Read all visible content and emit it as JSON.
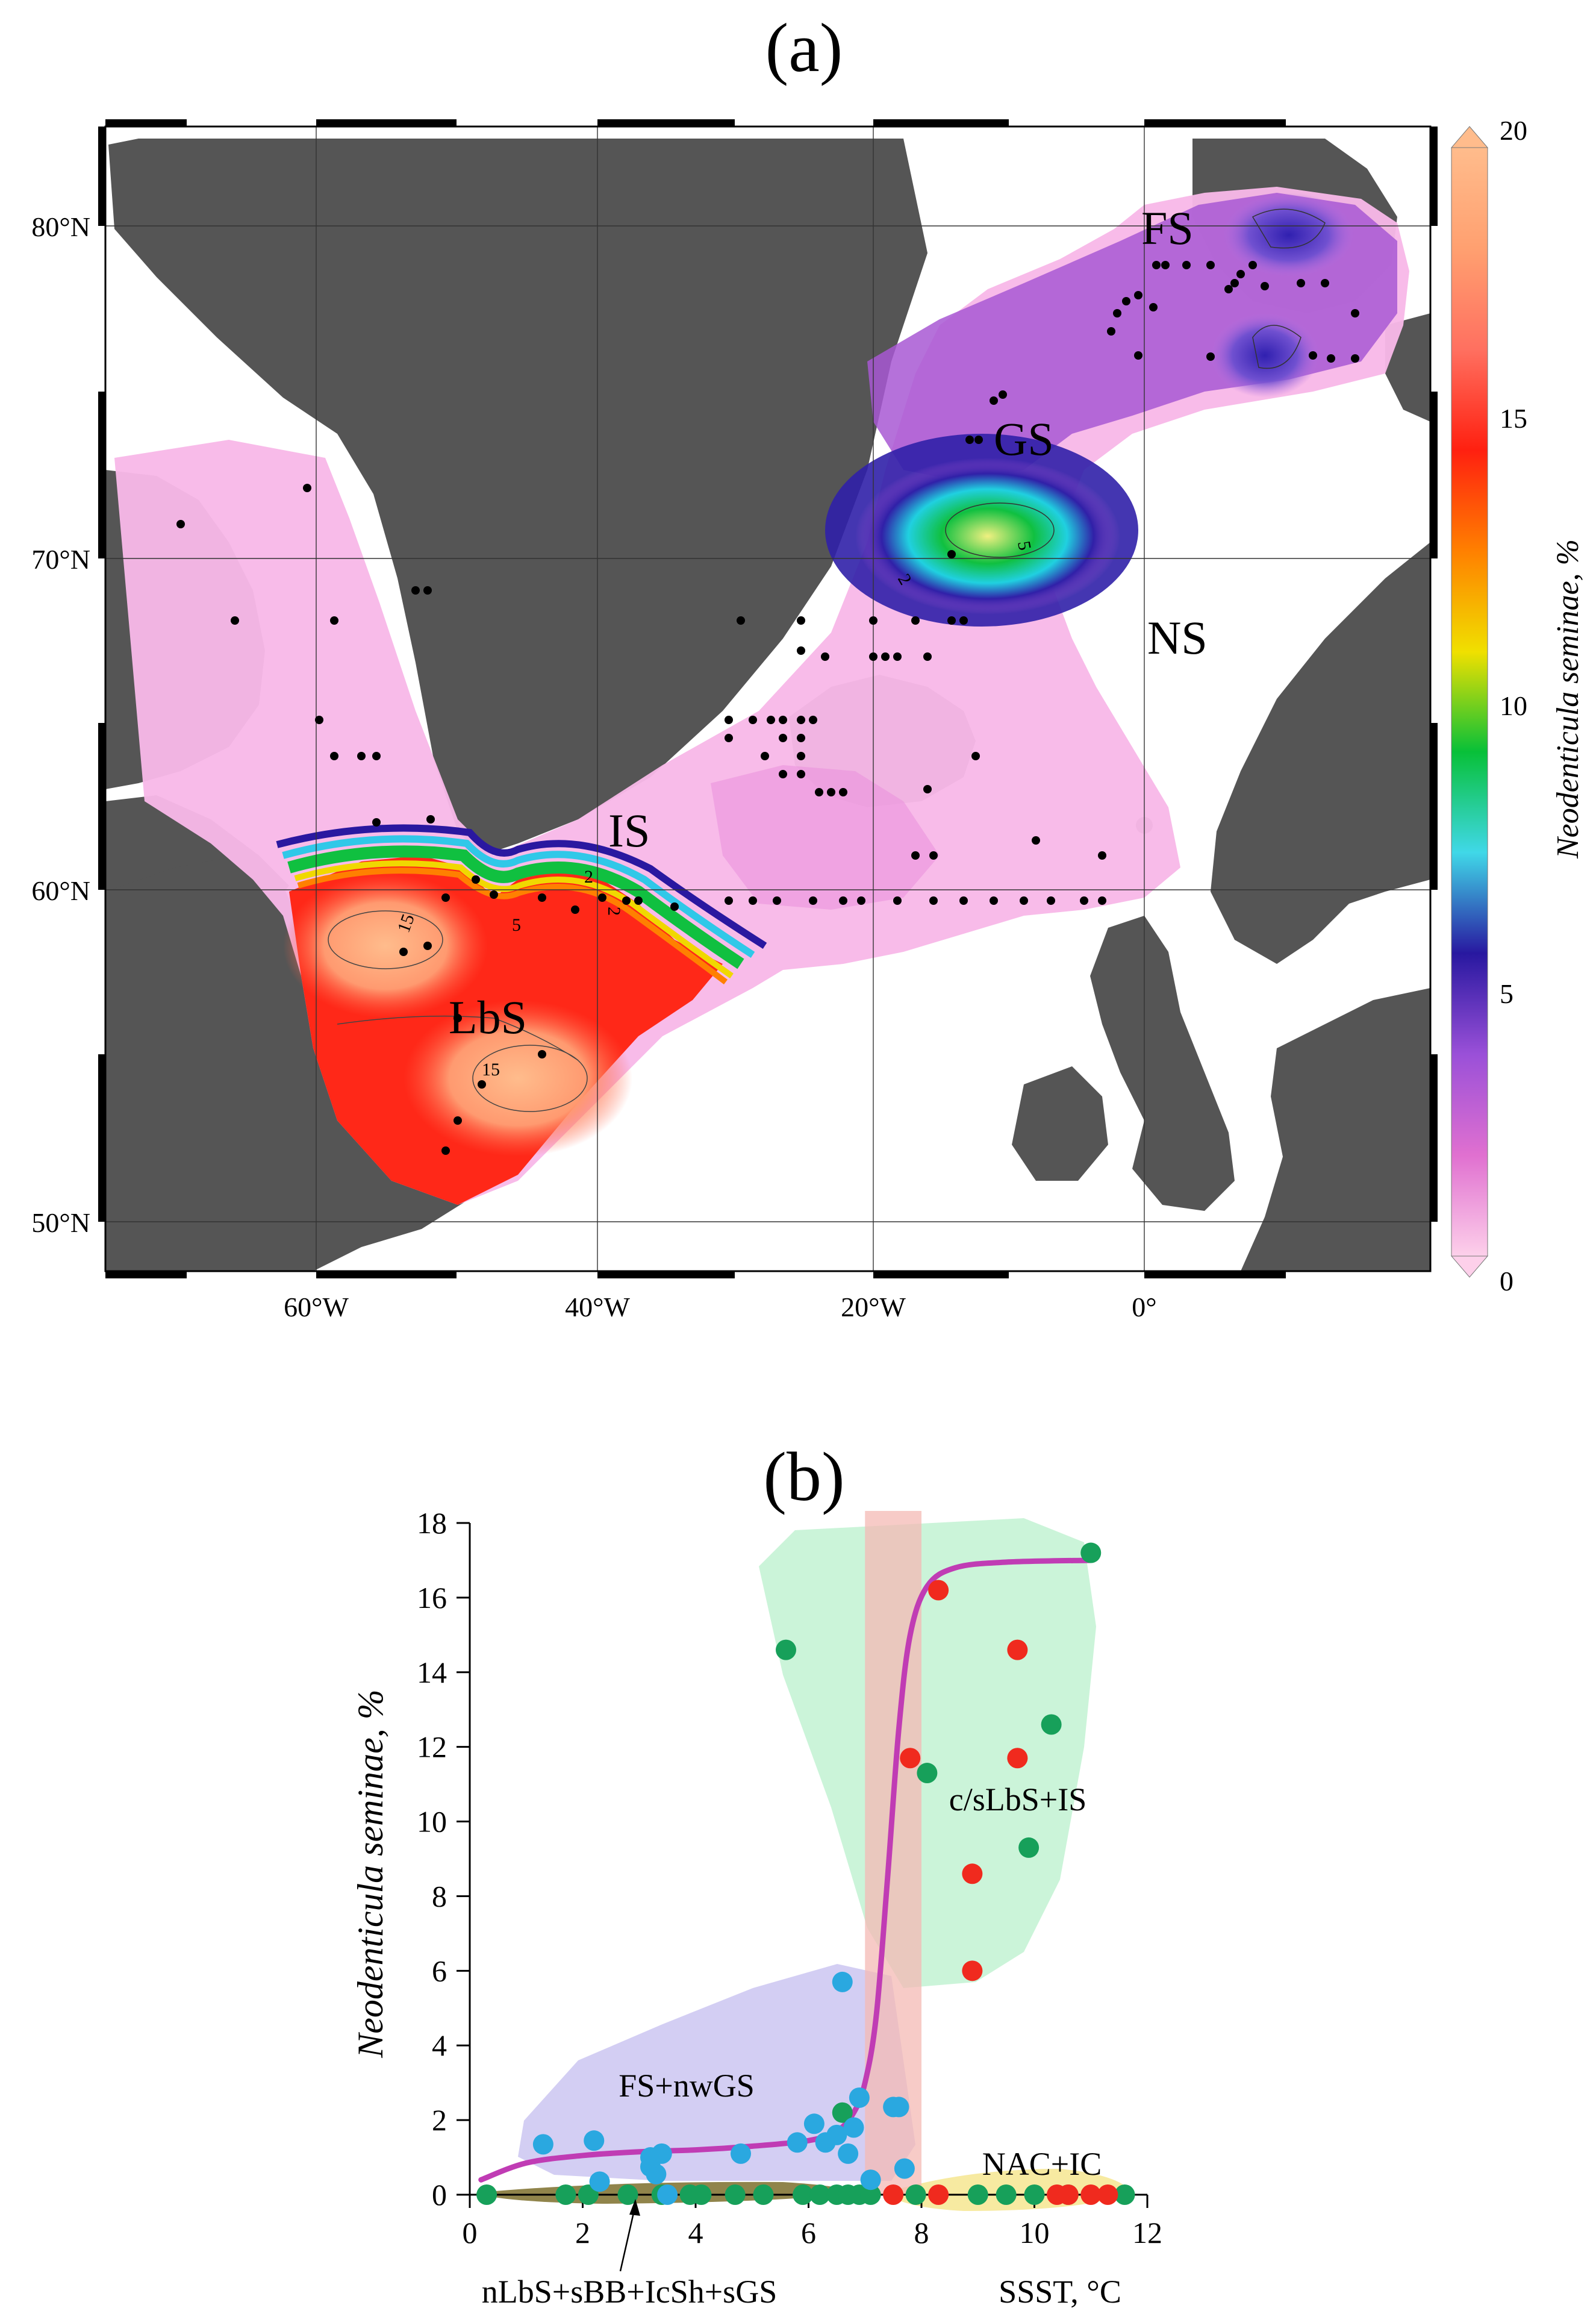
{
  "panel_a": {
    "label": "(a)",
    "region_labels": [
      "FS",
      "GS",
      "NS",
      "IS",
      "LbS"
    ],
    "lat_ticks": [
      "80°N",
      "70°N",
      "60°N",
      "50°N"
    ],
    "lon_ticks": [
      "60°W",
      "40°W",
      "20°W",
      "0°"
    ],
    "contour_labels": [
      "5",
      "2",
      "2",
      "5",
      "2",
      "15",
      "15"
    ],
    "colorbar": {
      "label": "Neodenticula seminae, %",
      "ticks": [
        "20",
        "15",
        "10",
        "5",
        "0"
      ],
      "colors": [
        "#fdd0ea",
        "#e070d0",
        "#9a50d8",
        "#2818a0",
        "#40d8e8",
        "#08c038",
        "#f0e000",
        "#ff8000",
        "#ff2010",
        "#ff7060",
        "#ffa070",
        "#ffbc8c"
      ]
    }
  },
  "panel_b": {
    "label": "(b)",
    "group_labels": [
      "c/sLbS+IS",
      "FS+nwGS",
      "NAC+IC",
      "nLbS+sBB+IcSh+sGS"
    ]
  },
  "chart_data": {
    "type": "scatter",
    "title": "",
    "xlabel": "SSST, °C",
    "ylabel": "Neodenticula seminae, %",
    "xlim": [
      0,
      12
    ],
    "ylim": [
      0,
      18
    ],
    "x_ticks": [
      "0",
      "2",
      "4",
      "6",
      "8",
      "10",
      "12"
    ],
    "y_ticks": [
      "0",
      "2",
      "4",
      "6",
      "8",
      "10",
      "12",
      "14",
      "16",
      "18"
    ],
    "threshold_band": [
      7.0,
      8.0
    ],
    "series": [
      {
        "color": "#17a05a",
        "points": [
          [
            0.3,
            0
          ],
          [
            1.7,
            0
          ],
          [
            2.1,
            0
          ],
          [
            2.8,
            0
          ],
          [
            3.4,
            0
          ],
          [
            3.9,
            0
          ],
          [
            4.1,
            0
          ],
          [
            4.7,
            0
          ],
          [
            5.2,
            0
          ],
          [
            5.9,
            0
          ],
          [
            6.2,
            0
          ],
          [
            6.5,
            0
          ],
          [
            6.7,
            0
          ],
          [
            6.9,
            0
          ],
          [
            7.1,
            0
          ],
          [
            7.9,
            0
          ],
          [
            9.0,
            0
          ],
          [
            9.5,
            0
          ],
          [
            10.0,
            0
          ],
          [
            10.6,
            0
          ],
          [
            11.6,
            0
          ],
          [
            6.6,
            2.2
          ],
          [
            5.6,
            14.6
          ],
          [
            8.1,
            11.3
          ],
          [
            9.9,
            9.3
          ],
          [
            10.3,
            12.6
          ],
          [
            11.0,
            17.2
          ]
        ]
      },
      {
        "color": "#2aa8e0",
        "points": [
          [
            1.3,
            1.35
          ],
          [
            2.2,
            1.45
          ],
          [
            3.2,
            0.75
          ],
          [
            3.2,
            1.0
          ],
          [
            3.3,
            0.55
          ],
          [
            3.4,
            1.1
          ],
          [
            4.8,
            1.1
          ],
          [
            5.8,
            1.4
          ],
          [
            6.1,
            1.9
          ],
          [
            6.3,
            1.4
          ],
          [
            6.5,
            1.6
          ],
          [
            6.6,
            5.7
          ],
          [
            6.7,
            1.1
          ],
          [
            6.8,
            1.8
          ],
          [
            6.9,
            2.6
          ],
          [
            7.1,
            0.4
          ],
          [
            7.5,
            2.35
          ],
          [
            7.6,
            2.35
          ],
          [
            7.7,
            0.7
          ],
          [
            2.3,
            0.35
          ],
          [
            3.5,
            0
          ]
        ]
      },
      {
        "color": "#f02a1e",
        "points": [
          [
            7.8,
            11.7
          ],
          [
            8.3,
            16.2
          ],
          [
            8.9,
            8.6
          ],
          [
            8.9,
            6.0
          ],
          [
            9.7,
            14.6
          ],
          [
            9.7,
            11.7
          ],
          [
            7.5,
            0
          ],
          [
            8.3,
            0
          ],
          [
            10.4,
            0
          ],
          [
            10.6,
            0
          ],
          [
            11.0,
            0
          ],
          [
            11.3,
            0
          ]
        ]
      }
    ],
    "curve": {
      "color": "#c03cb4",
      "points": [
        [
          0.2,
          0.4
        ],
        [
          1.0,
          0.85
        ],
        [
          2.0,
          1.05
        ],
        [
          3.0,
          1.15
        ],
        [
          4.0,
          1.2
        ],
        [
          5.0,
          1.3
        ],
        [
          6.0,
          1.45
        ],
        [
          6.5,
          1.7
        ],
        [
          6.8,
          2.2
        ],
        [
          7.0,
          3.0
        ],
        [
          7.2,
          4.8
        ],
        [
          7.4,
          8.5
        ],
        [
          7.6,
          12.5
        ],
        [
          7.8,
          15.0
        ],
        [
          8.1,
          16.3
        ],
        [
          8.6,
          16.8
        ],
        [
          9.5,
          16.95
        ],
        [
          11.0,
          17.0
        ]
      ]
    }
  }
}
